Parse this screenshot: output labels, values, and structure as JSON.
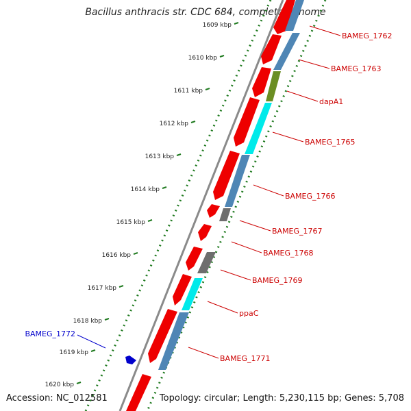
{
  "title": "Bacillus anthracis str. CDC 684, complete genome",
  "accession": "Accession: NC_012581",
  "topology": "Topology: circular; Length: 5,230,115 bp; Genes: 5,708",
  "colors": {
    "forward_gene": "#ee0000",
    "reverse_gene": "#4f86b5",
    "cyan_gene": "#00eaea",
    "olive_gene": "#6b8e23",
    "gray_gene": "#6e6e6e",
    "label_red": "#cc0000",
    "label_blue": "#0000cc",
    "tick_green": "#1f7a1f",
    "backbone": "#8a8a8a"
  },
  "kbp_ticks": [
    "1609 kbp",
    "1610 kbp",
    "1611 kbp",
    "1612 kbp",
    "1613 kbp",
    "1614 kbp",
    "1615 kbp",
    "1616 kbp",
    "1617 kbp",
    "1618 kbp",
    "1619 kbp",
    "1620 kbp"
  ],
  "gene_labels": [
    {
      "text": "BAMEG_1762",
      "color": "red"
    },
    {
      "text": "BAMEG_1763",
      "color": "red"
    },
    {
      "text": "dapA1",
      "color": "red"
    },
    {
      "text": "BAMEG_1765",
      "color": "red"
    },
    {
      "text": "BAMEG_1766",
      "color": "red"
    },
    {
      "text": "BAMEG_1767",
      "color": "red"
    },
    {
      "text": "BAMEG_1768",
      "color": "red"
    },
    {
      "text": "BAMEG_1769",
      "color": "red"
    },
    {
      "text": "ppaC",
      "color": "red"
    },
    {
      "text": "BAMEG_1771",
      "color": "red"
    },
    {
      "text": "BAMEG_1772",
      "color": "blue"
    }
  ]
}
